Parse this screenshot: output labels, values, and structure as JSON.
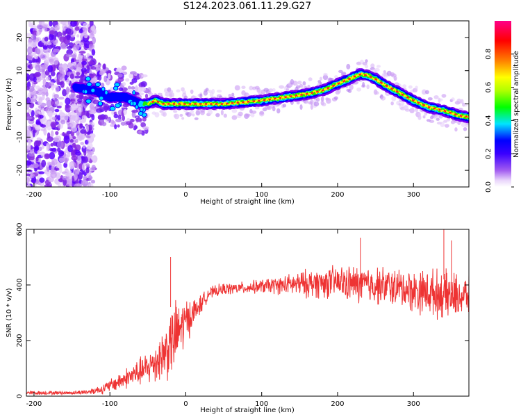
{
  "title": "S124.2023.061.11.29.G27",
  "chart_data": [
    {
      "type": "heatmap",
      "title": "S124.2023.061.11.29.G27",
      "xlabel": "Height of straight line (km)",
      "ylabel": "Frequency (Hz)",
      "xlim": [
        -210,
        373
      ],
      "ylim": [
        -25,
        25
      ],
      "xticks": [
        -200,
        -100,
        0,
        100,
        200,
        300
      ],
      "yticks": [
        -20,
        -10,
        0,
        10,
        20
      ],
      "colorbar": {
        "label": "Normalized spectral amplitude",
        "ticks": [
          0.0,
          0.2,
          0.4,
          0.6,
          0.8
        ],
        "range": [
          0,
          1
        ],
        "colormap": [
          "#ffffff",
          "#e9d5fb",
          "#8a2be2",
          "#3a00ff",
          "#0000ff",
          "#00e5ff",
          "#00ff00",
          "#b0ff00",
          "#ffff00",
          "#ff8000",
          "#ff0000",
          "#ff0088"
        ]
      },
      "ridge": {
        "x": [
          -145,
          -120,
          -100,
          -80,
          -60,
          -50,
          -40,
          -30,
          0,
          50,
          100,
          130,
          160,
          180,
          200,
          210,
          220,
          230,
          240,
          250,
          260,
          280,
          300,
          320,
          340,
          360,
          373
        ],
        "y": [
          5,
          4,
          2,
          2,
          0,
          0,
          1,
          0,
          0,
          0,
          1,
          2,
          3,
          4,
          6,
          7,
          8,
          9,
          8.5,
          7.5,
          6,
          3.5,
          1,
          -1,
          -2,
          -3.5,
          -4
        ]
      },
      "noise_region": {
        "x": [
          -210,
          -135
        ],
        "y": [
          -25,
          25
        ]
      },
      "scatter_region": {
        "x": [
          -150,
          -50
        ],
        "y": [
          -12,
          15
        ]
      }
    },
    {
      "type": "line",
      "xlabel": "Height of straight line (km)",
      "ylabel": "SNR (10 * v/v)",
      "xlim": [
        -210,
        373
      ],
      "ylim": [
        0,
        600
      ],
      "xticks": [
        -200,
        -100,
        0,
        100,
        200,
        300
      ],
      "yticks": [
        0,
        200,
        400,
        600
      ],
      "series": [
        {
          "color": "#ee3333",
          "envelope_x": [
            -210,
            -150,
            -130,
            -110,
            -90,
            -70,
            -50,
            -30,
            -20,
            -10,
            0,
            10,
            20,
            30,
            50,
            80,
            100,
            130,
            160,
            200,
            230,
            250,
            280,
            300,
            330,
            350,
            373
          ],
          "envelope_mean": [
            12,
            12,
            15,
            25,
            50,
            75,
            100,
            150,
            190,
            230,
            270,
            300,
            330,
            370,
            385,
            390,
            395,
            400,
            405,
            410,
            400,
            400,
            390,
            380,
            370,
            360,
            360
          ],
          "envelope_spread": [
            8,
            8,
            10,
            20,
            35,
            50,
            70,
            110,
            150,
            140,
            100,
            60,
            40,
            25,
            25,
            25,
            30,
            40,
            60,
            70,
            80,
            80,
            80,
            90,
            100,
            100,
            80
          ],
          "peak_values": {
            "x": [
              -20,
              230,
              340,
              350
            ],
            "y": [
              500,
              570,
              600,
              560
            ]
          }
        }
      ]
    }
  ]
}
